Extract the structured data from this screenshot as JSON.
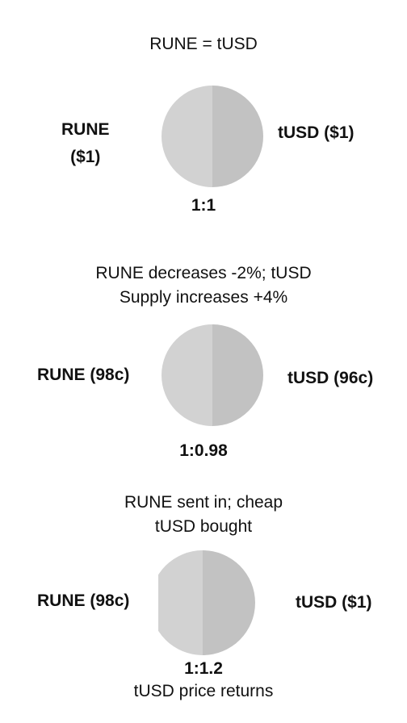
{
  "colors": {
    "rune_half": "#d2d2d2",
    "tusd_half": "#c2c2c2",
    "text": "#111111"
  },
  "panels": [
    {
      "caption_lines": [
        "RUNE = tUSD"
      ],
      "left_label_lines": [
        "RUNE",
        "($1)"
      ],
      "right_label": "tUSD ($1)",
      "ratio": "1:1",
      "note": ""
    },
    {
      "caption_lines": [
        "RUNE decreases -2%; tUSD",
        "Supply increases +4%"
      ],
      "left_label_lines": [
        "RUNE (98c)"
      ],
      "right_label": "tUSD (96c)",
      "ratio": "1:0.98",
      "note": ""
    },
    {
      "caption_lines": [
        "RUNE sent in; cheap",
        "tUSD bought"
      ],
      "left_label_lines": [
        "RUNE (98c)"
      ],
      "right_label": "tUSD ($1)",
      "ratio": "1:1.2",
      "note": "tUSD price returns"
    }
  ]
}
